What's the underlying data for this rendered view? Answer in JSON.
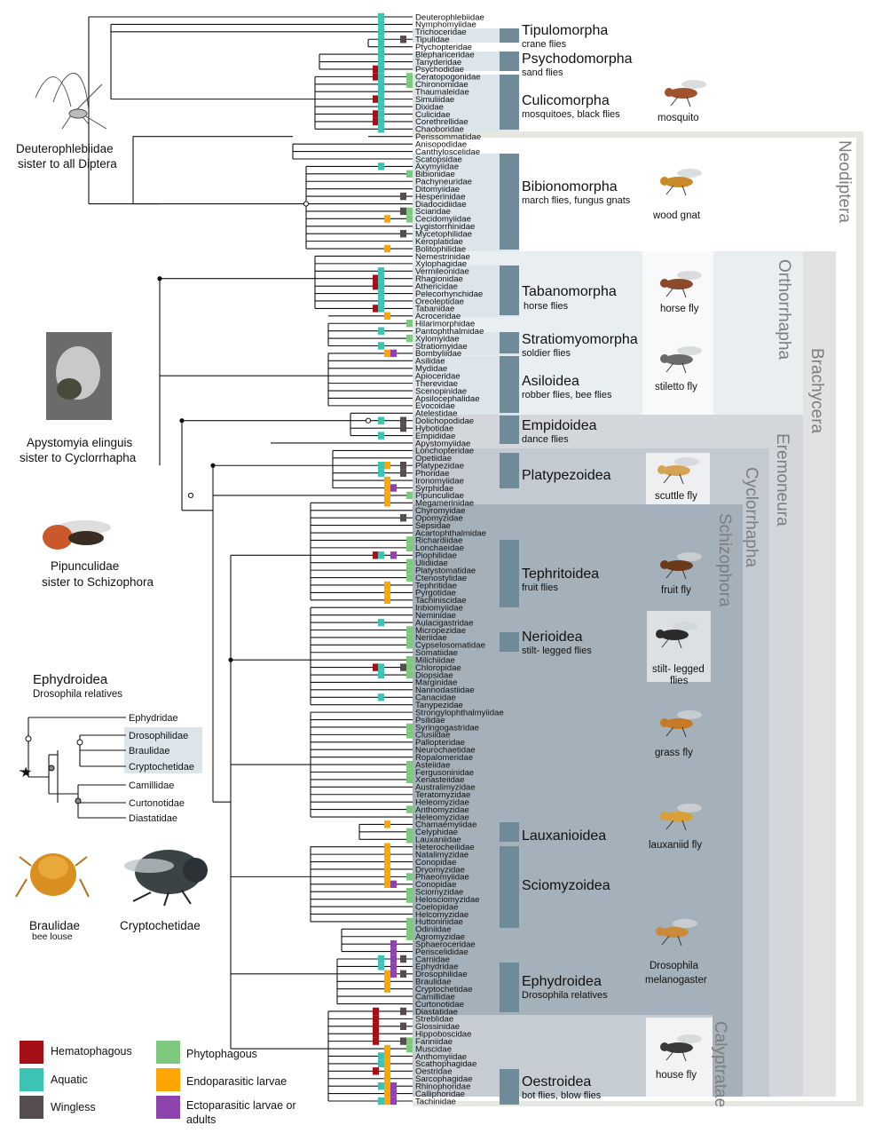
{
  "families": [
    "Deuterophlebiidae",
    "Nymphomyiidae",
    "Trichoceridae",
    "Tipulidae",
    "Ptychopteridae",
    "Blephariceridae",
    "Tanyderidae",
    "Psychodidae",
    "Ceratopogonidae",
    "Chironomidae",
    "Thaumaleidae",
    "Simuliidae",
    "Dixidae",
    "Culicidae",
    "Corethrellidae",
    "Chaoboridae",
    "Perissommatidae",
    "Anisopodidae",
    "Canthyloscelidae",
    "Scatopsidae",
    "Axymyiidae",
    "Bibionidae",
    "Pachyneuridae",
    "Ditomyiidae",
    "Hesperinidae",
    "Diadocidiidae",
    "Sciaridae",
    "Cecidomyiidae",
    "Lygistorrhinidae",
    "Mycetophilidae",
    "Keroplatidae",
    "Bolitophilidae",
    "Nemestrinidae",
    "Xylophagidae",
    "Vermileonidae",
    "Rhagionidae",
    "Athericidae",
    "Pelecorhynchidae",
    "Oreoleptidae",
    "Tabanidae",
    "Acroceridae",
    "Hilarimorphidae",
    "Pantophthalmidae",
    "Xylomyidae",
    "Stratiomyidae",
    "Bombyliidae",
    "Asilidae",
    "Mydidae",
    "Apioceridae",
    "Therevidae",
    "Scenopinidae",
    "Apsilocephalidae",
    "Evocoidae",
    "Atelestidae",
    "Dolichopodidae",
    "Hybotidae",
    "Empididae",
    "Apystomyiidae",
    "Lonchopteridae",
    "Opetiidae",
    "Platypezidae",
    "Phoridae",
    "Ironomyiidae",
    "Syrphidae",
    "Pipunculidae",
    "Megamerinidae",
    "Chyromyidae",
    "Opomyzidae",
    "Sepsidae",
    "Acartophthalmidae",
    "Richardiidae",
    "Lonchaeidae",
    "Piophilidae",
    "Ulidiidae",
    "Platystomatidae",
    "Ctenostylidae",
    "Tephritidae",
    "Pyrgotidae",
    "Tachiniscidae",
    "Inbiomyiidae",
    "Neminidae",
    "Aulacigastridae",
    "Micropezidae",
    "Neriidae",
    "Cypselosomatidae",
    "Somatiidae",
    "Milichiidae",
    "Chloropidae",
    "Diopsidae",
    "Marginidae",
    "Nannodastiidae",
    "Canacidae",
    "Tanypezidae",
    "Strongylophthalmyiidae",
    "Psilidae",
    "Syringogastridae",
    "Clusiidae",
    "Pallopteridae",
    "Neurochaetidae",
    "Ropalomeridae",
    "Asteiidae",
    "Fergusoninidae",
    "Xenasteiidae",
    "Australimyzidae",
    "Teratomyzidae",
    "Heleomyzidae",
    "Anthomyzidae",
    "Heleomyzidae",
    "Chamaemyiidae",
    "Celyphidae",
    "Lauxaniidae",
    "Heterocheilidae",
    "Natalimyzidae",
    "Conopidae",
    "Dryomyzidae",
    "Phaeomyiidae",
    "Conopidae",
    "Sciomyzidae",
    "Helosciomyzidae",
    "Coelopidae",
    "Helcomyzidae",
    "Huttoninidae",
    "Odiniidae",
    "Agromyzidae",
    "Sphaeroceridae",
    "Periscelididae",
    "Carnidae",
    "Ephydridae",
    "Drosophilidae",
    "Braulidae",
    "Cryptochetidae",
    "Camillidae",
    "Curtonotidae",
    "Diastatidae",
    "Streblidae",
    "Glossinidae",
    "Hippoboscidae",
    "Fanniidae",
    "Muscidae",
    "Anthomyiidae",
    "Scathophagidae",
    "Oestridae",
    "Sarcophagidae",
    "Rhinophoridae",
    "Calliphoridae",
    "Tachinidae"
  ],
  "groups": [
    {
      "name": "Tipulomorpha",
      "sub": "crane flies"
    },
    {
      "name": "Psychodomorpha",
      "sub": "sand flies"
    },
    {
      "name": "Culicomorpha",
      "sub": "mosquitoes, black flies"
    },
    {
      "name": "Bibionomorpha",
      "sub": "march flies, fungus gnats"
    },
    {
      "name": "Tabanomorpha",
      "sub": "horse flies"
    },
    {
      "name": "Stratiomyomorpha",
      "sub": "soldier flies"
    },
    {
      "name": "Asiloidea",
      "sub": "robber flies, bee flies"
    },
    {
      "name": "Empidoidea",
      "sub": "dance flies"
    },
    {
      "name": "Platypezoidea",
      "sub": ""
    },
    {
      "name": "Tephritoidea",
      "sub": "fruit flies"
    },
    {
      "name": "Nerioidea",
      "sub": "stilt- legged flies"
    },
    {
      "name": "Lauxanioidea",
      "sub": ""
    },
    {
      "name": "Sciomyzoidea",
      "sub": ""
    },
    {
      "name": "Ephydroidea",
      "sub": "Drosophila relatives"
    },
    {
      "name": "Oestroidea",
      "sub": "bot flies, blow flies"
    }
  ],
  "clades": [
    "Neodiptera",
    "Brachycera",
    "Orthorrhapha",
    "Eremoneura",
    "Cyclorrhapha",
    "Schizophora",
    "Calyptratae"
  ],
  "photo_labels": {
    "mosquito": "mosquito",
    "wood_gnat": "wood gnat",
    "horse_fly": "horse fly",
    "stiletto_fly": "stiletto fly",
    "scuttle_fly": "scuttle fly",
    "fruit_fly": "fruit fly",
    "stilt1": "stilt- legged",
    "stilt2": "flies",
    "grass_fly": "grass fly",
    "lauxaniid_fly": "lauxaniid fly",
    "droso1": "Drosophila",
    "droso2": "melanogaster",
    "house_fly": "house fly"
  },
  "notes": {
    "deut1": "Deuterophlebiidae",
    "deut2": "sister to all Diptera",
    "apy1": "Apystomyia elinguis",
    "apy2": "sister to Cyclorrhapha",
    "pip1": "Pipunculidae",
    "pip2": "sister to Schizophora"
  },
  "inset": {
    "title": "Ephydroidea",
    "subtitle": "Drosophila relatives",
    "taxa": [
      "Ephydridae",
      "Drosophilidae",
      "Braulidae",
      "Cryptochetidae",
      "Camillidae",
      "Curtonotidae",
      "Diastatidae"
    ],
    "photo1": "Braulidae",
    "photo1_sub": "bee louse",
    "photo2": "Cryptochetidae"
  },
  "legend": [
    {
      "label": "Hematophagous",
      "color": "#a50f15"
    },
    {
      "label": "Aquatic",
      "color": "#3cc3b4"
    },
    {
      "label": "Wingless",
      "color": "#564d4f"
    },
    {
      "label": "Phytophagous",
      "color": "#7fc97f"
    },
    {
      "label": "Endoparasitic larvae",
      "color": "#ffa500"
    },
    {
      "label": "Ectoparasitic larvae or",
      "label2": "adults",
      "color": "#8e44ad"
    }
  ],
  "colors": {
    "group_bar": "#6f8a99",
    "light_panel": "#dfe7ec",
    "mid_panel": "#b7c3cb",
    "dark_panel": "#9aa9b3"
  }
}
